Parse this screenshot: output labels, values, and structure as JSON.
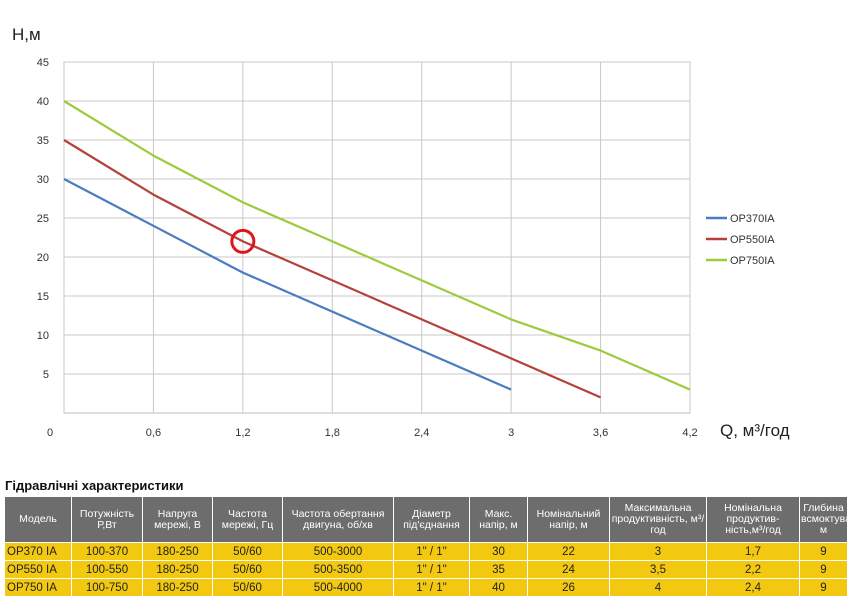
{
  "chart_data": {
    "type": "line",
    "xlabel": "Q,  м³/год",
    "ylabel": "H,м",
    "xlim": [
      0,
      4.2
    ],
    "ylim": [
      0,
      45
    ],
    "x_ticks": [
      "0",
      "0,6",
      "1,2",
      "1,8",
      "2,4",
      "3",
      "3,6",
      "4,2"
    ],
    "y_ticks": [
      "5",
      "10",
      "15",
      "20",
      "25",
      "30",
      "35",
      "40",
      "45"
    ],
    "grid": true,
    "legend_position": "right",
    "series": [
      {
        "name": "OP370IA",
        "color": "#4a7cc1",
        "points": [
          [
            0,
            30
          ],
          [
            0.6,
            24
          ],
          [
            1.2,
            18
          ],
          [
            1.8,
            13
          ],
          [
            2.4,
            8
          ],
          [
            3,
            3
          ]
        ]
      },
      {
        "name": "OP550IA",
        "color": "#b5413a",
        "points": [
          [
            0,
            35
          ],
          [
            0.6,
            28
          ],
          [
            1.2,
            22
          ],
          [
            1.8,
            17
          ],
          [
            2.4,
            12
          ],
          [
            3,
            7
          ],
          [
            3.6,
            2
          ]
        ]
      },
      {
        "name": "OP750IA",
        "color": "#9ccb3b",
        "points": [
          [
            0,
            40
          ],
          [
            0.6,
            33
          ],
          [
            1.2,
            27
          ],
          [
            1.8,
            22
          ],
          [
            2.4,
            17
          ],
          [
            3,
            12
          ],
          [
            3.6,
            8
          ],
          [
            4.2,
            3
          ]
        ]
      }
    ],
    "highlight": {
      "series": "OP550IA",
      "x": 1.2,
      "y": 22,
      "color": "#e0141a"
    }
  },
  "table": {
    "title": "Гідравлічні характеристики",
    "headers": [
      "Модель",
      "Потужність Р,Вт",
      "Напруга мережі, В",
      "Частота мережі, Гц",
      "Частота обертання двигуна, об/хв",
      "Діаметр під'єднання",
      "Макс. напір, м",
      "Номінальний напір, м",
      "Максимальна продуктивність, м³/год",
      "Номінальна продуктив-ність,м³/год",
      "Глибина всмоктування, м"
    ],
    "rows": [
      [
        "OP370 IA",
        "100-370",
        "180-250",
        "50/60",
        "500-3000",
        "1\" / 1\"",
        "30",
        "22",
        "3",
        "1,7",
        "9"
      ],
      [
        "OP550 IA",
        "100-550",
        "180-250",
        "50/60",
        "500-3500",
        "1\" / 1\"",
        "35",
        "24",
        "3,5",
        "2,2",
        "9"
      ],
      [
        "OP750 IA",
        "100-750",
        "180-250",
        "50/60",
        "500-4000",
        "1\" / 1\"",
        "40",
        "26",
        "4",
        "2,4",
        "9"
      ]
    ]
  }
}
